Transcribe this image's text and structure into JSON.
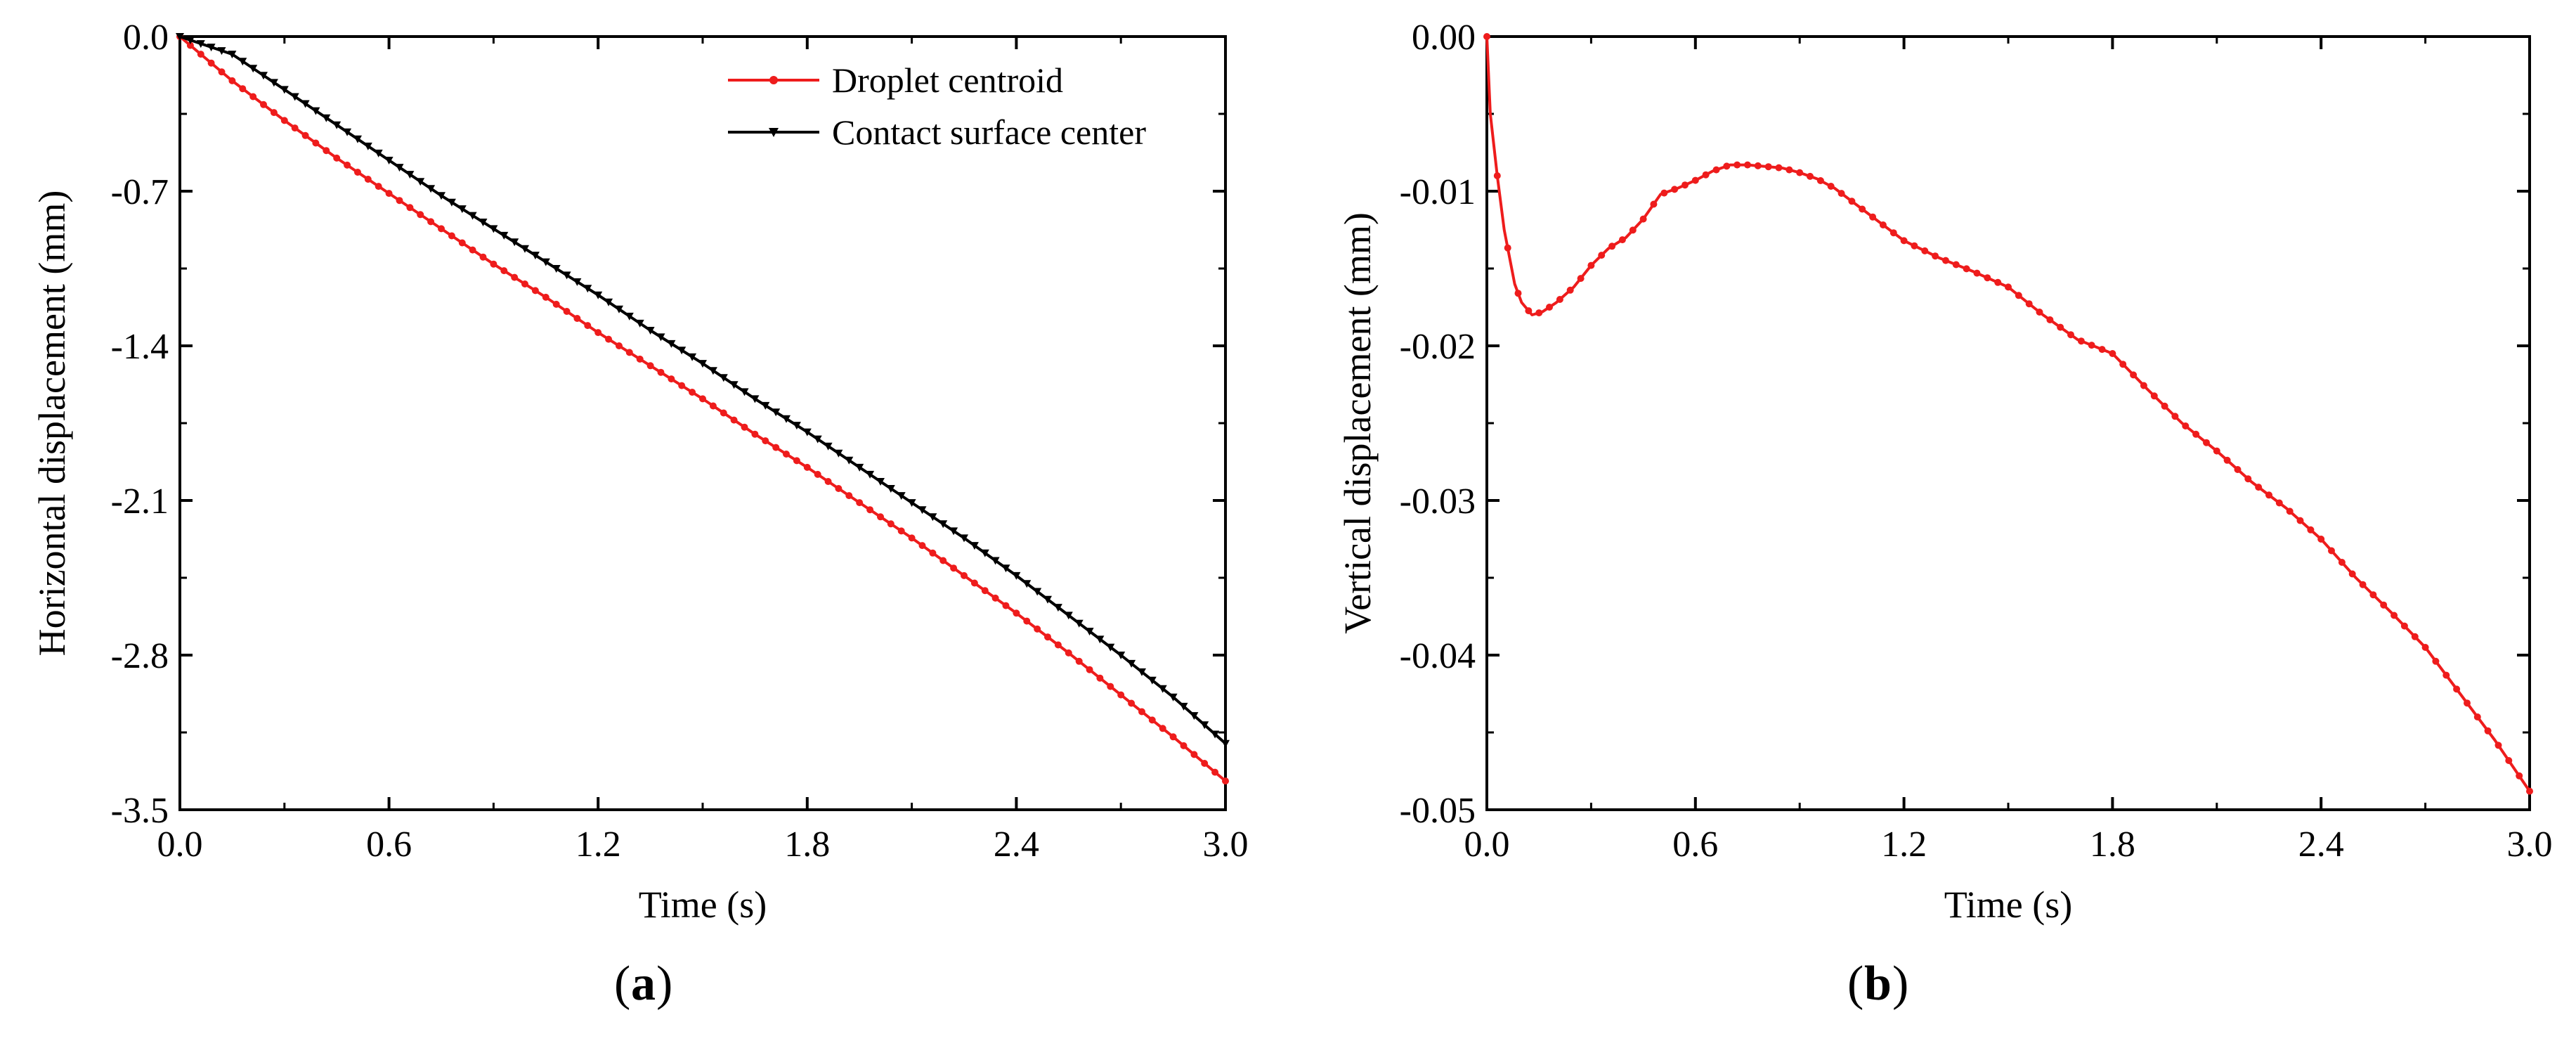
{
  "colors": {
    "red": "#ee1c1c",
    "black": "#000000"
  },
  "chart_data": [
    {
      "type": "line",
      "title": "",
      "panel_label": "a",
      "xlabel": "Time (s)",
      "ylabel": "Horizontal displacement (mm)",
      "xlim": [
        0.0,
        3.0
      ],
      "ylim": [
        -3.5,
        0.0
      ],
      "xticks": [
        "0.0",
        "0.6",
        "1.2",
        "1.8",
        "2.4",
        "3.0"
      ],
      "yticks": [
        "0.0",
        "-0.7",
        "-1.4",
        "-2.1",
        "-2.8",
        "-3.5"
      ],
      "legend": {
        "location": "top-right"
      },
      "series": [
        {
          "name": "Droplet centroid",
          "color": "#ee1c1c",
          "marker": "circle",
          "x": [
            0.0,
            0.15,
            0.3,
            0.45,
            0.6,
            0.75,
            0.9,
            1.05,
            1.2,
            1.35,
            1.5,
            1.65,
            1.8,
            1.95,
            2.1,
            2.25,
            2.4,
            2.55,
            2.7,
            2.85,
            3.0
          ],
          "y": [
            0.0,
            -0.2,
            -0.38,
            -0.55,
            -0.71,
            -0.87,
            -1.03,
            -1.18,
            -1.34,
            -1.49,
            -1.64,
            -1.8,
            -1.95,
            -2.11,
            -2.27,
            -2.44,
            -2.61,
            -2.79,
            -2.98,
            -3.17,
            -3.37
          ]
        },
        {
          "name": "Contact surface center",
          "color": "#000000",
          "marker": "triangle-down",
          "x": [
            0.0,
            0.15,
            0.3,
            0.45,
            0.6,
            0.75,
            0.9,
            1.05,
            1.2,
            1.35,
            1.5,
            1.65,
            1.8,
            1.95,
            2.1,
            2.25,
            2.4,
            2.55,
            2.7,
            2.85,
            3.0
          ],
          "y": [
            0.0,
            -0.08,
            -0.24,
            -0.4,
            -0.56,
            -0.72,
            -0.87,
            -1.02,
            -1.17,
            -1.33,
            -1.48,
            -1.64,
            -1.79,
            -1.95,
            -2.11,
            -2.27,
            -2.44,
            -2.62,
            -2.8,
            -2.99,
            -3.2
          ]
        }
      ]
    },
    {
      "type": "line",
      "title": "",
      "panel_label": "b",
      "xlabel": "Time (s)",
      "ylabel": "Vertical displacement (mm)",
      "xlim": [
        0.0,
        3.0
      ],
      "ylim": [
        -0.05,
        0.0
      ],
      "xticks": [
        "0.0",
        "0.6",
        "1.2",
        "1.8",
        "2.4",
        "3.0"
      ],
      "yticks": [
        "0.00",
        "-0.01",
        "-0.02",
        "-0.03",
        "-0.04",
        "-0.05"
      ],
      "series": [
        {
          "name": "Vertical displacement",
          "color": "#ee1c1c",
          "marker": "circle",
          "x": [
            0.0,
            0.01,
            0.03,
            0.05,
            0.08,
            0.1,
            0.13,
            0.16,
            0.2,
            0.25,
            0.3,
            0.35,
            0.4,
            0.45,
            0.5,
            0.55,
            0.6,
            0.65,
            0.7,
            0.75,
            0.8,
            0.85,
            0.9,
            0.95,
            1.0,
            1.1,
            1.2,
            1.3,
            1.4,
            1.5,
            1.6,
            1.7,
            1.8,
            1.9,
            2.0,
            2.1,
            2.2,
            2.3,
            2.4,
            2.5,
            2.6,
            2.7,
            2.8,
            2.9,
            3.0
          ],
          "y": [
            0.0,
            -0.005,
            -0.009,
            -0.0125,
            -0.016,
            -0.0172,
            -0.018,
            -0.0178,
            -0.0172,
            -0.0162,
            -0.0148,
            -0.0137,
            -0.013,
            -0.0118,
            -0.0102,
            -0.0098,
            -0.0093,
            -0.0087,
            -0.0083,
            -0.0083,
            -0.0084,
            -0.0085,
            -0.0088,
            -0.0092,
            -0.0098,
            -0.0115,
            -0.0132,
            -0.0143,
            -0.0152,
            -0.0162,
            -0.018,
            -0.0196,
            -0.0205,
            -0.0228,
            -0.025,
            -0.0268,
            -0.0288,
            -0.0305,
            -0.0325,
            -0.035,
            -0.0372,
            -0.0395,
            -0.0425,
            -0.0455,
            -0.0488
          ]
        }
      ]
    }
  ]
}
